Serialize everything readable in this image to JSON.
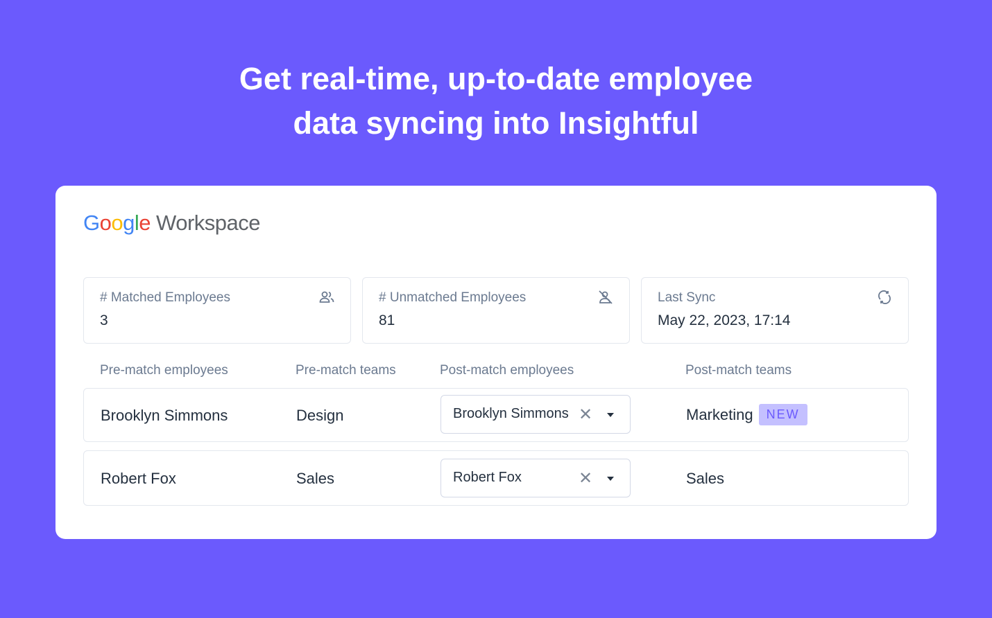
{
  "headline": {
    "line1": "Get real-time, up-to-date employee",
    "line2": "data syncing into Insightful"
  },
  "logo": {
    "google_letters": [
      "G",
      "o",
      "o",
      "g",
      "l",
      "e"
    ],
    "google_colors": [
      "#4285F4",
      "#EA4335",
      "#FBBC05",
      "#4285F4",
      "#34A853",
      "#EA4335"
    ],
    "product": "Workspace"
  },
  "stats": [
    {
      "label": "# Matched Employees",
      "value": "3",
      "icon": "users-icon"
    },
    {
      "label": "# Unmatched Employees",
      "value": "81",
      "icon": "user-off-icon"
    },
    {
      "label": "Last Sync",
      "value": "May 22, 2023, 17:14",
      "icon": "sync-icon"
    }
  ],
  "columns": [
    "Pre-match employees",
    "Pre-match teams",
    "Post-match employees",
    "Post-match teams"
  ],
  "rows": [
    {
      "pre_employee": "Brooklyn Simmons",
      "pre_team": "Design",
      "post_employee": "Brooklyn Simmons",
      "post_team": "Marketing",
      "badge": "NEW"
    },
    {
      "pre_employee": "Robert Fox",
      "pre_team": "Sales",
      "post_employee": "Robert Fox",
      "post_team": "Sales"
    }
  ],
  "clear_symbol": "✕",
  "colors": {
    "background": "#6b5afd",
    "badge_bg": "#c4c0ff"
  }
}
